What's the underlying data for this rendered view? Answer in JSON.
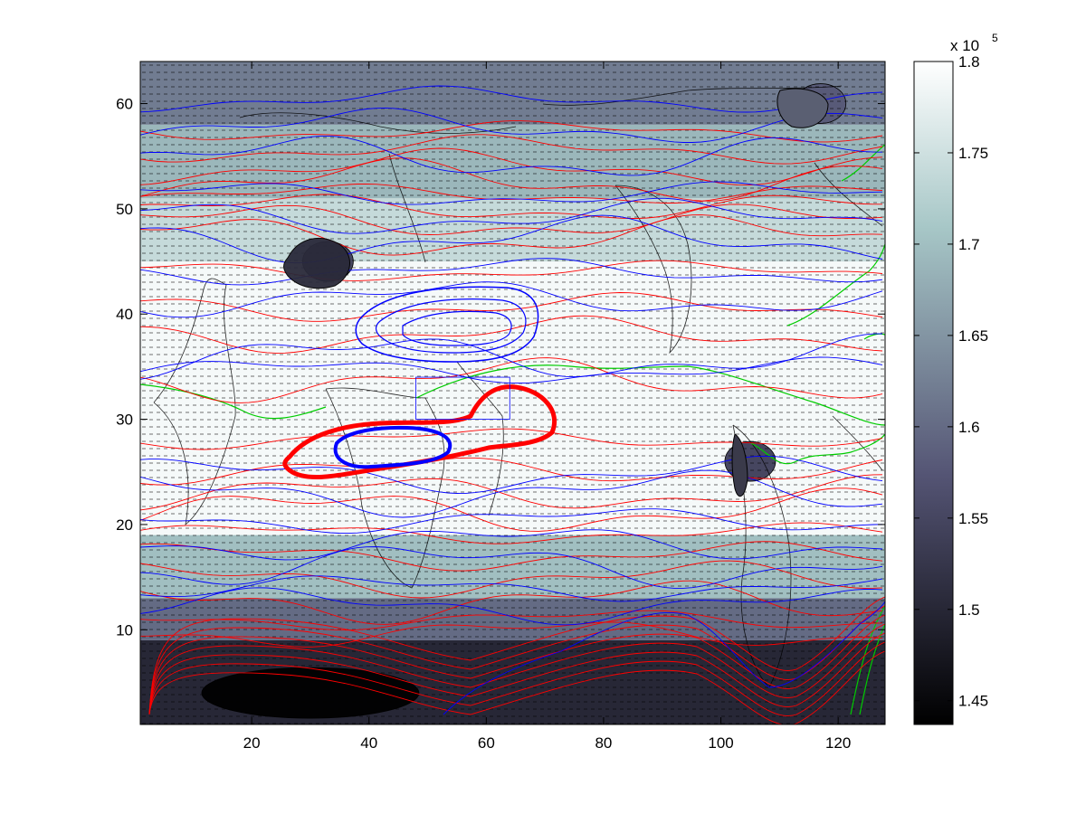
{
  "chart_data": {
    "type": "heatmap",
    "title": "",
    "xlabel": "",
    "ylabel": "",
    "xlim": [
      1,
      128
    ],
    "ylim": [
      1,
      64
    ],
    "xticks": [
      20,
      40,
      60,
      80,
      100,
      120
    ],
    "yticks": [
      10,
      20,
      30,
      40,
      50,
      60
    ],
    "xtick_labels": [
      "20",
      "40",
      "60",
      "80",
      "100",
      "120"
    ],
    "ytick_labels": [
      "10",
      "20",
      "30",
      "40",
      "50",
      "60"
    ],
    "colorbar": {
      "multiplier_label": "x 10",
      "multiplier_exponent": "5",
      "range": [
        1.437,
        1.8
      ],
      "ticks": [
        1.45,
        1.5,
        1.55,
        1.6,
        1.65,
        1.7,
        1.75,
        1.8
      ],
      "tick_labels": [
        "1.45",
        "1.5",
        "1.55",
        "1.6",
        "1.65",
        "1.7",
        "1.75",
        "1.8"
      ],
      "colormap": "bone"
    },
    "shaded_field_bands": [
      {
        "y_range": [
          1,
          9
        ],
        "value": 1.5
      },
      {
        "y_range": [
          9,
          13
        ],
        "value": 1.6
      },
      {
        "y_range": [
          13,
          19
        ],
        "value": 1.7
      },
      {
        "y_range": [
          19,
          45
        ],
        "value": 1.79
      },
      {
        "y_range": [
          45,
          51
        ],
        "value": 1.74
      },
      {
        "y_range": [
          51,
          58
        ],
        "value": 1.69
      },
      {
        "y_range": [
          58,
          64
        ],
        "value": 1.62
      }
    ],
    "field_lows": [
      {
        "x": 30,
        "y": 4,
        "value": 1.44
      },
      {
        "x": 33,
        "y": 45,
        "value": 1.55
      },
      {
        "x": 105,
        "y": 26,
        "value": 1.55
      },
      {
        "x": 117,
        "y": 60,
        "value": 1.58
      }
    ],
    "contour_series": [
      {
        "color": "#ff0000",
        "style": "red contours",
        "closed_feature_center": [
          50,
          29
        ]
      },
      {
        "color": "#0000ff",
        "style": "blue contours",
        "closed_feature_center": [
          40,
          26
        ],
        "second_feature_center": [
          55,
          39
        ]
      },
      {
        "color": "#00cc00",
        "style": "green contours"
      }
    ],
    "box_outline": {
      "x_range": [
        48,
        64
      ],
      "y_range": [
        30,
        34
      ]
    },
    "overlays": [
      "coastlines",
      "wind vectors"
    ],
    "grid": false,
    "legend": "none"
  },
  "colors": {
    "red_contour": "#ff0000",
    "blue_contour": "#0000ff",
    "green_contour": "#00cc00",
    "axes": "#000000"
  }
}
